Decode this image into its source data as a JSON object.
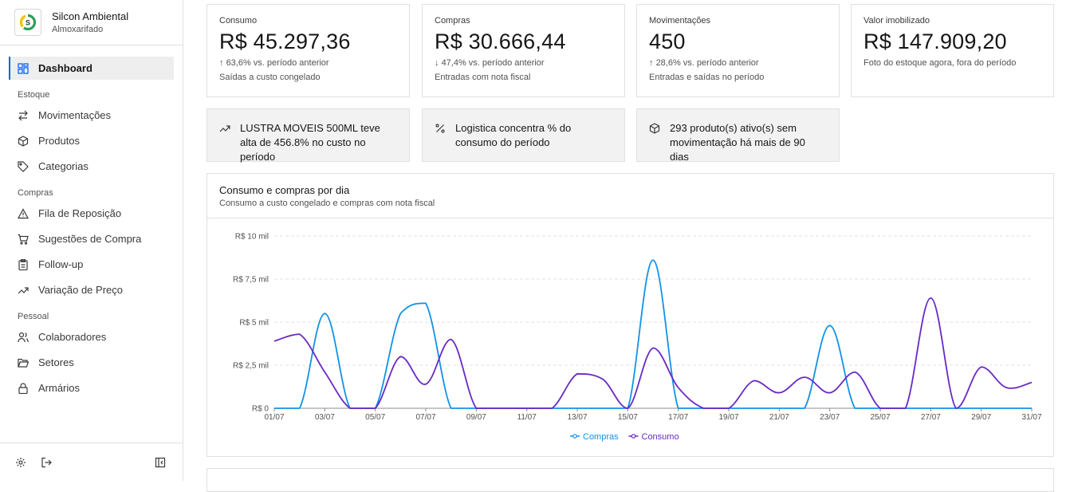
{
  "brand": {
    "name": "Silcon Ambiental",
    "subtitle": "Almoxarifado",
    "logo_letter": "S"
  },
  "nav": {
    "dashboard": "Dashboard",
    "sections": {
      "estoque": "Estoque",
      "compras": "Compras",
      "pessoal": "Pessoal"
    },
    "items": {
      "movimentacoes": "Movimentações",
      "produtos": "Produtos",
      "categorias": "Categorias",
      "fila": "Fila de Reposição",
      "sugestoes": "Sugestões de Compra",
      "followup": "Follow-up",
      "variacao": "Variação de Preço",
      "colaboradores": "Colaboradores",
      "setores": "Setores",
      "armarios": "Armários"
    }
  },
  "kpis": [
    {
      "label": "Consumo",
      "value": "R$ 45.297,36",
      "delta_arrow": "↑",
      "delta": "63,6% vs. período anterior",
      "note": "Saídas a custo congelado"
    },
    {
      "label": "Compras",
      "value": "R$ 30.666,44",
      "delta_arrow": "↓",
      "delta": "47,4% vs. período anterior",
      "note": "Entradas com nota fiscal"
    },
    {
      "label": "Movimentações",
      "value": "450",
      "delta_arrow": "↑",
      "delta": "28,6% vs. período anterior",
      "note": "Entradas e saídas no período"
    },
    {
      "label": "Valor imobilizado",
      "value": "R$ 147.909,20",
      "note": "Foto do estoque agora, fora do período"
    }
  ],
  "insights": [
    {
      "icon": "trend-up-icon",
      "text": "LUSTRA MOVEIS 500ML teve alta de 456.8% no custo no período"
    },
    {
      "icon": "percent-icon",
      "text": "Logistica concentra % do consumo do período"
    },
    {
      "icon": "package-icon",
      "text": "293 produto(s) ativo(s) sem movimentação há mais de 90 dias"
    }
  ],
  "chart": {
    "title": "Consumo e compras por dia",
    "subtitle": "Consumo a custo congelado e compras com nota fiscal"
  },
  "chart_data": {
    "type": "line",
    "x": [
      "01/07",
      "02/07",
      "03/07",
      "04/07",
      "05/07",
      "06/07",
      "07/07",
      "08/07",
      "09/07",
      "10/07",
      "11/07",
      "12/07",
      "13/07",
      "14/07",
      "15/07",
      "16/07",
      "17/07",
      "18/07",
      "19/07",
      "20/07",
      "21/07",
      "22/07",
      "23/07",
      "24/07",
      "25/07",
      "26/07",
      "27/07",
      "28/07",
      "29/07",
      "30/07",
      "31/07"
    ],
    "x_tick_labels": [
      "01/07",
      "03/07",
      "05/07",
      "07/07",
      "09/07",
      "11/07",
      "13/07",
      "15/07",
      "17/07",
      "19/07",
      "21/07",
      "23/07",
      "25/07",
      "27/07",
      "29/07",
      "31/07"
    ],
    "y_tick_labels": [
      "R$ 0",
      "R$ 2,5 mil",
      "R$ 5 mil",
      "R$ 7,5 mil",
      "R$ 10 mil"
    ],
    "ylim": [
      0,
      10000
    ],
    "grid": true,
    "legend": "bottom-center",
    "series": [
      {
        "name": "Compras",
        "color": "#1192e8",
        "values": [
          0,
          0,
          5500,
          0,
          0,
          5500,
          6100,
          0,
          0,
          0,
          0,
          0,
          0,
          0,
          0,
          8600,
          0,
          0,
          0,
          0,
          0,
          0,
          4800,
          0,
          0,
          0,
          0,
          0,
          0,
          0,
          0
        ]
      },
      {
        "name": "Consumo",
        "color": "#6929c4",
        "values": [
          3900,
          4300,
          2100,
          0,
          0,
          3000,
          1400,
          4000,
          0,
          0,
          0,
          0,
          2000,
          1700,
          0,
          3500,
          1200,
          0,
          0,
          1600,
          900,
          1800,
          900,
          2100,
          0,
          0,
          6400,
          0,
          2400,
          1200,
          1500
        ]
      }
    ]
  }
}
